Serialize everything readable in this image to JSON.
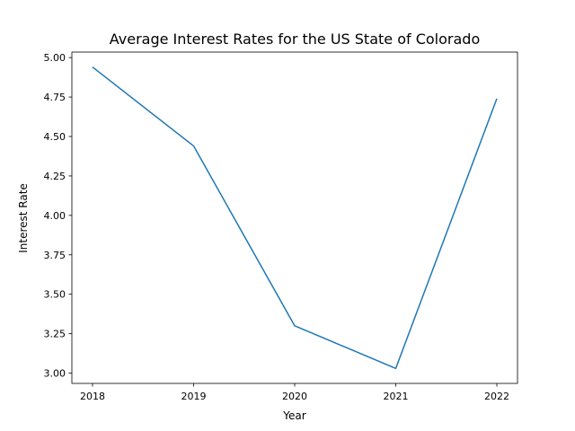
{
  "chart_data": {
    "type": "line",
    "title": "Average Interest Rates for the US State of Colorado",
    "xlabel": "Year",
    "ylabel": "Interest Rate",
    "x": [
      "2018",
      "2019",
      "2020",
      "2021",
      "2022"
    ],
    "series": [
      {
        "values": [
          4.94,
          4.44,
          3.3,
          3.03,
          4.74
        ],
        "color": "#1f77b4"
      }
    ],
    "yticks": [
      "3.00",
      "3.25",
      "3.50",
      "3.75",
      "4.00",
      "4.25",
      "4.50",
      "4.75",
      "5.00"
    ],
    "ylim": [
      2.935,
      5.035
    ],
    "grid": false,
    "legend": "none"
  }
}
